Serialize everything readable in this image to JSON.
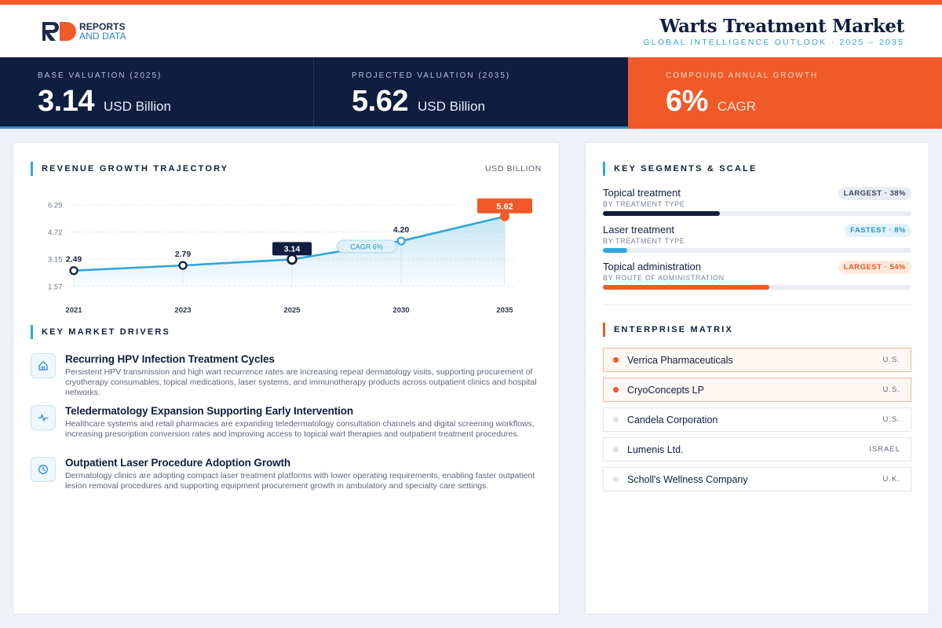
{
  "header": {
    "logo_line1": "REPORTS",
    "logo_line2": "AND DATA",
    "title": "Warts Treatment Market",
    "subtitle": "GLOBAL INTELLIGENCE OUTLOOK  ·  2025 – 2035"
  },
  "kpis": [
    {
      "label": "BASE VALUATION (2025)",
      "value": "3.14",
      "unit": "USD Billion"
    },
    {
      "label": "PROJECTED VALUATION (2035)",
      "value": "5.62",
      "unit": "USD Billion"
    },
    {
      "label": "COMPOUND ANNUAL GROWTH",
      "value": "6%",
      "unit": "CAGR"
    }
  ],
  "colors": {
    "navy": "#0f1d3f",
    "orange": "#ef5a28",
    "blue": "#2fa6d9"
  },
  "chart_section": {
    "title": "REVENUE GROWTH TRAJECTORY",
    "unit_label": "USD BILLION"
  },
  "chart_data": {
    "type": "area",
    "x": [
      "2021",
      "2023",
      "2025",
      "2030",
      "2035"
    ],
    "values": [
      2.49,
      2.79,
      3.14,
      4.2,
      5.62
    ],
    "value_labels": [
      "2.49",
      "2.79",
      "3.14",
      "4.20",
      "5.62"
    ],
    "y_ticks": [
      "6.29",
      "4.72",
      "3.15",
      "1.57"
    ],
    "ylim": [
      1.57,
      6.29
    ],
    "annotation": "CAGR 6%",
    "highlight_points": {
      "base": 2,
      "projected": 4
    },
    "grid": true,
    "title": "",
    "xlabel": "",
    "ylabel": ""
  },
  "drivers_section": {
    "title": "KEY MARKET DRIVERS",
    "items": [
      {
        "icon": "home-icon",
        "title": "Recurring HPV Infection Treatment Cycles",
        "desc": "Persistent HPV transmission and high wart recurrence rates are increasing repeat dermatology visits, supporting procurement of cryotherapy consumables, topical medications, laser systems, and immunotherapy products across outpatient clinics and hospital networks."
      },
      {
        "icon": "pulse-icon",
        "title": "Teledermatology Expansion Supporting Early Intervention",
        "desc": "Healthcare systems and retail pharmacies are expanding teledermatology consultation channels and digital screening workflows, increasing prescription conversion rates and improving access to topical wart therapies and outpatient treatment procedures."
      },
      {
        "icon": "clock-icon",
        "title": "Outpatient Laser Procedure Adoption Growth",
        "desc": "Dermatology clinics are adopting compact laser treatment platforms with lower operating requirements, enabling faster outpatient lesion removal procedures and supporting equipment procurement growth in ambulatory and specialty care settings."
      }
    ]
  },
  "segments_section": {
    "title": "KEY SEGMENTS & SCALE",
    "items": [
      {
        "title": "Topical treatment",
        "sub": "BY TREATMENT TYPE",
        "badge": "LARGEST · 38%",
        "share": 0.38,
        "color": "#0f1d3f"
      },
      {
        "title": "Laser treatment",
        "sub": "BY TREATMENT TYPE",
        "badge": "FASTEST · 8%",
        "share": 0.08,
        "color": "#2fa6d9"
      },
      {
        "title": "Topical administration",
        "sub": "BY ROUTE OF ADMINISTRATION",
        "badge": "LARGEST · 54%",
        "share": 0.54,
        "color": "#ef5a28"
      }
    ]
  },
  "matrix_section": {
    "title": "ENTERPRISE MATRIX",
    "items": [
      {
        "name": "Verrica Pharmaceuticals",
        "country": "U.S."
      },
      {
        "name": "CryoConcepts LP",
        "country": "U.S."
      },
      {
        "name": "Candela Corporation",
        "country": "U.S."
      },
      {
        "name": "Lumenis Ltd.",
        "country": "ISRAEL"
      },
      {
        "name": "Scholl's Wellness Company",
        "country": "U.K."
      }
    ]
  }
}
